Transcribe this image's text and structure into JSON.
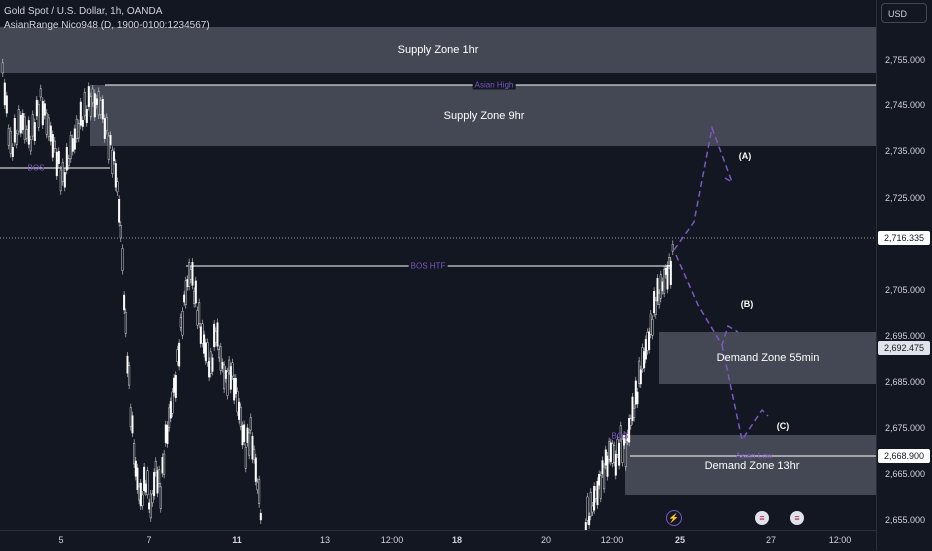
{
  "header": {
    "title": "Gold Spot / U.S. Dollar, 1h, OANDA",
    "indicator": "AsianRange Nico948 (D, 1900-0100:1234567)"
  },
  "currency_button": "USD",
  "zones": {
    "supply_1hr": "Supply Zone 1hr",
    "supply_9hr": "Supply Zone 9hr",
    "demand_55min": "Demand Zone 55min",
    "demand_13hr": "Demand Zone 13hr"
  },
  "line_labels": {
    "asian_high": "Asian High",
    "bos_left": "BOS",
    "bos_htf": "BOS HTF",
    "bos_right": "BOS",
    "asian_low": "Asian Low"
  },
  "wave_labels": {
    "a": "(A)",
    "b": "(B)",
    "c": "(C)"
  },
  "price_axis": {
    "ticks": [
      "2,755.000",
      "2,745.000",
      "2,735.000",
      "2,725.000",
      "2,705.000",
      "2,695.000",
      "2,685.000",
      "2,675.000",
      "2,665.000",
      "2,655.000"
    ],
    "current_price": "2,716.335",
    "demand_55_level": "2,692.475",
    "asian_low_level": "2,668.900"
  },
  "time_axis": [
    "5",
    "7",
    "11",
    "13",
    "12:00",
    "18",
    "20",
    "12:00",
    "25",
    "27",
    "12:00"
  ],
  "colors": {
    "background": "#131722",
    "zone": "#4a4e5a",
    "wave": "#7e57c2",
    "candle": "#ffffff"
  },
  "icons": {
    "event_1": "lightning-icon",
    "event_2": "us-flag-icon",
    "event_3": "us-flag-icon"
  }
}
